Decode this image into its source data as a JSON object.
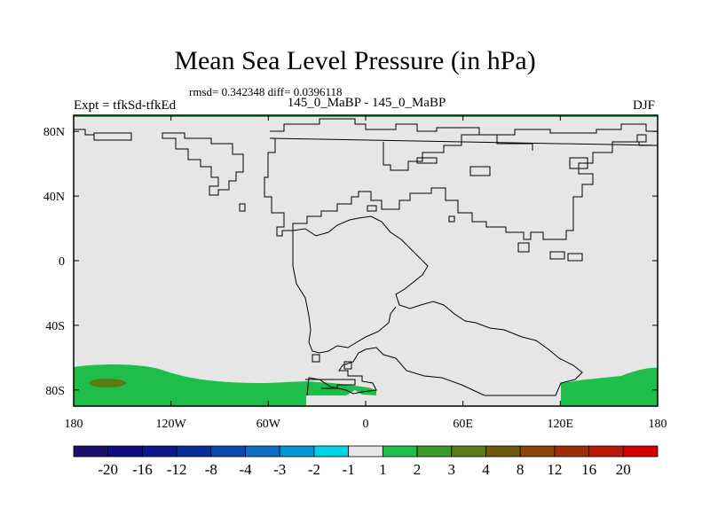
{
  "header": {
    "title": "Mean Sea Level Pressure (in hPa)",
    "stats": "rmsd= 0.342348  diff= 0.0396118",
    "expt": "Expt = tfkSd-tfkEd",
    "subtitle": "145_0_MaBP - 145_0_MaBP",
    "season": "DJF"
  },
  "chart_data": {
    "type": "heatmap",
    "title": "Mean Sea Level Pressure (in hPa)",
    "projection": "cylindrical equidistant",
    "x_ticks": [
      "180",
      "120W",
      "60W",
      "0",
      "60E",
      "120E",
      "180"
    ],
    "x_tick_values": [
      -180,
      -120,
      -60,
      0,
      60,
      120,
      180
    ],
    "y_ticks": [
      "80N",
      "40N",
      "0",
      "40S",
      "80S"
    ],
    "y_tick_values": [
      80,
      40,
      0,
      -40,
      -80
    ],
    "xlim": [
      -180,
      180
    ],
    "ylim": [
      -90,
      90
    ],
    "colorbar": {
      "labels": [
        "-20",
        "-16",
        "-12",
        "-8",
        "-4",
        "-3",
        "-2",
        "-1",
        "1",
        "2",
        "3",
        "4",
        "8",
        "12",
        "16",
        "20"
      ],
      "colors": [
        "#1a0f6b",
        "#0d0d80",
        "#0a1a8c",
        "#0a2d9c",
        "#0a4ab0",
        "#0a6ec4",
        "#0096d2",
        "#00d2e6",
        "#e6e6e6",
        "#1fbe4a",
        "#3c9a28",
        "#5c7a16",
        "#6e5a0c",
        "#8c460a",
        "#a02d0a",
        "#b8180a",
        "#d40000"
      ]
    },
    "background_bin": "-1 to 1",
    "regions": [
      {
        "label": "Southern high-latitude positive anomaly (1 to 2 hPa)",
        "color": "#1fbe4a",
        "lon_range": [
          -180,
          180
        ],
        "lat_range": [
          -90,
          -60
        ]
      },
      {
        "label": "Local maximum (3 to 4 hPa)",
        "color": "#5c7a16",
        "lon_center": -140,
        "lat_center": -75
      }
    ]
  }
}
